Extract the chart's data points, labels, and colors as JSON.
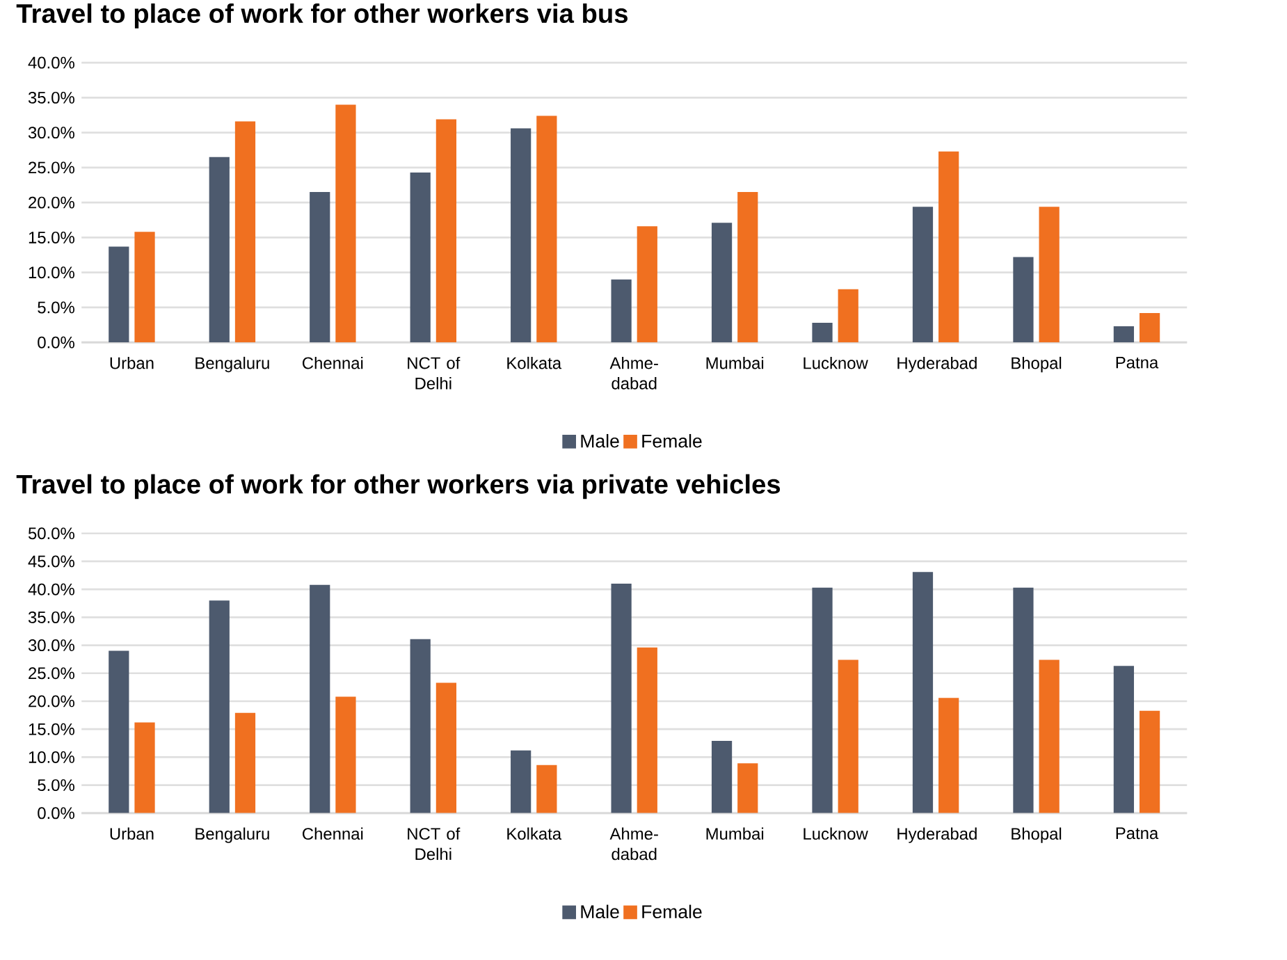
{
  "chart_data": [
    {
      "type": "bar",
      "title": "Travel to place of work for other workers via bus",
      "categories": [
        "Urban",
        "Bengaluru",
        "Chennai",
        "NCT of Delhi",
        "Kolkata",
        "Ahme-dabad",
        "Mumbai",
        "Lucknow",
        "Hyderabad",
        "Bhopal",
        "Patna"
      ],
      "series": [
        {
          "name": "Male",
          "color": "#4d5a6e",
          "values": [
            13.7,
            26.5,
            21.5,
            24.3,
            30.6,
            9.0,
            17.1,
            2.8,
            19.4,
            12.2,
            2.3
          ]
        },
        {
          "name": "Female",
          "color": "#f07020",
          "values": [
            15.8,
            31.6,
            34.0,
            31.9,
            32.4,
            16.6,
            21.5,
            7.6,
            27.3,
            19.4,
            4.2
          ]
        }
      ],
      "ylim": [
        0,
        40
      ],
      "yticks": [
        {
          "value": 0,
          "label": "0.0%"
        },
        {
          "value": 5,
          "label": "5.0%"
        },
        {
          "value": 10,
          "label": "10.0%"
        },
        {
          "value": 15,
          "label": "15.0%"
        },
        {
          "value": 20,
          "label": "20.0%"
        },
        {
          "value": 25,
          "label": "25.0%"
        },
        {
          "value": 30,
          "label": "30.0%"
        },
        {
          "value": 35,
          "label": "35.0%"
        },
        {
          "value": 40,
          "label": "40.0%"
        }
      ],
      "grid": "y",
      "legend": "bottom"
    },
    {
      "type": "bar",
      "title": "Travel to place of work for other workers via private vehicles",
      "categories": [
        "Urban",
        "Bengaluru",
        "Chennai",
        "NCT of Delhi",
        "Kolkata",
        "Ahme-dabad",
        "Mumbai",
        "Lucknow",
        "Hyderabad",
        "Bhopal",
        "Patna"
      ],
      "series": [
        {
          "name": "Male",
          "color": "#4d5a6e",
          "values": [
            29.0,
            38.0,
            40.8,
            31.1,
            11.2,
            41.0,
            12.9,
            40.3,
            43.1,
            40.3,
            26.3
          ]
        },
        {
          "name": "Female",
          "color": "#f07020",
          "values": [
            16.2,
            17.9,
            20.8,
            23.3,
            8.6,
            29.6,
            8.9,
            27.4,
            20.6,
            27.4,
            18.3
          ]
        }
      ],
      "ylim": [
        0,
        50
      ],
      "yticks": [
        {
          "value": 0,
          "label": "0.0%"
        },
        {
          "value": 5,
          "label": "5.0%"
        },
        {
          "value": 10,
          "label": "10.0%"
        },
        {
          "value": 15,
          "label": "15.0%"
        },
        {
          "value": 20,
          "label": "20.0%"
        },
        {
          "value": 25,
          "label": "25.0%"
        },
        {
          "value": 30,
          "label": "30.0%"
        },
        {
          "value": 35,
          "label": "35.0%"
        },
        {
          "value": 40,
          "label": "40.0%"
        },
        {
          "value": 45,
          "label": "45.0%"
        },
        {
          "value": 50,
          "label": "50.0%"
        }
      ],
      "grid": "y",
      "legend": "bottom"
    }
  ]
}
